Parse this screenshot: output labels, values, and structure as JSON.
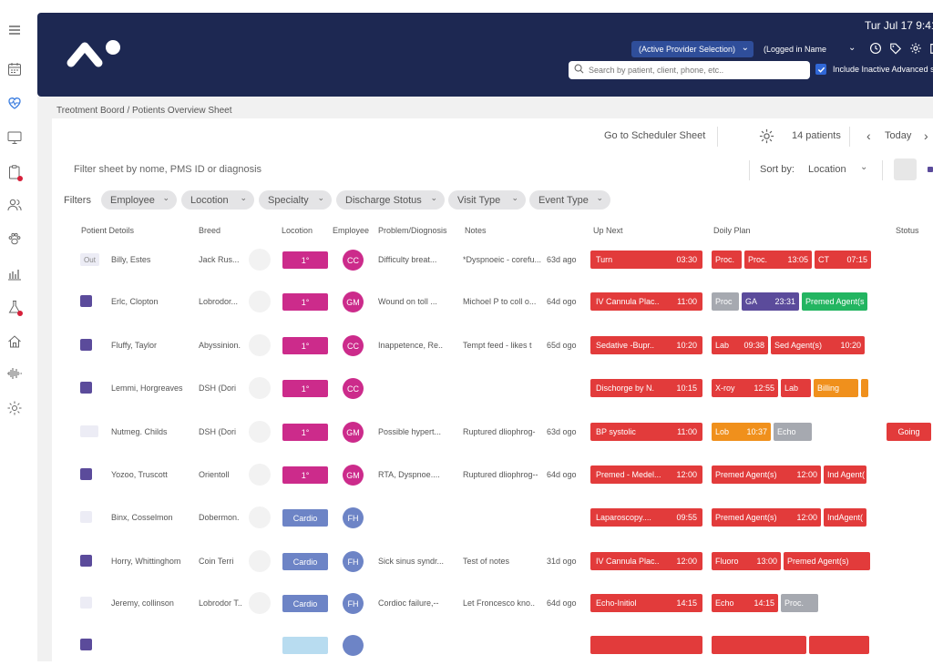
{
  "colors": {
    "navy": "#1d2852",
    "red": "#e23b3b",
    "magenta": "#cc2b8b",
    "indigo": "#5b4b9b",
    "cardio": "#6d84c6",
    "green": "#23b561",
    "orange": "#f0901c",
    "gray": "#a6a9b0",
    "lightblue": "#b8dcf0"
  },
  "header": {
    "datetime": "Tur Jul 17 9:41 (",
    "provider": "(Active Provider Selection)",
    "logged_in": "(Logged in Name",
    "search_placeholder": "Search by patient, client, phone, etc..",
    "include_inactive": "Include Inactive Advanced s"
  },
  "sidebar": {
    "icons": [
      "menu-icon",
      "calendar-icon",
      "heart-pulse-icon",
      "monitor-icon",
      "clipboard-icon",
      "users-icon",
      "paw-icon",
      "bar-chart-icon",
      "flask-icon",
      "home-icon",
      "waveform-icon",
      "settings-icon"
    ]
  },
  "breadcrumb": "Treotment Boord / Potients Overview Sheet",
  "toolbar": {
    "scheduler": "Go to Scheduler Sheet",
    "patients_count": "14 patients",
    "today": "Today"
  },
  "filter_placeholder": "Filter sheet by nome, PMS ID or diagnosis",
  "sort": {
    "label": "Sort by:",
    "value": "Location"
  },
  "filters": {
    "label": "Filters",
    "chips": [
      "Employee",
      "Locotion",
      "Specialty",
      "Discharge Stotus",
      "Visit Type",
      "Event Type"
    ]
  },
  "columns": [
    "Potient Detoils",
    "Breed",
    "Locotion",
    "Employee",
    "Problem/Diognosis",
    "Notes",
    "Up Next",
    "Doily Plan",
    "Stotus"
  ],
  "rows": [
    {
      "check": "out",
      "name": "Billy, Estes",
      "breed": "Jack Rus...",
      "loc": "1°",
      "loc_color": "magenta",
      "emp": "CC",
      "emp_color": "magenta",
      "problem": "Difficulty breat...",
      "note": "*Dyspnoeic - corefu...",
      "age": "63d ago",
      "up": {
        "label": "Turn",
        "time": "03:30"
      },
      "plan": [
        {
          "label": "Proc.",
          "time": "",
          "color": "red",
          "w": 33
        },
        {
          "label": "Proc.",
          "time": "13:05",
          "color": "red",
          "w": 74
        },
        {
          "label": "CT",
          "time": "07:15",
          "color": "red",
          "w": 62
        }
      ],
      "status": ""
    },
    {
      "check": "indigo",
      "name": "Erlc, Clopton",
      "breed": "Lobrodor...",
      "loc": "1°",
      "loc_color": "magenta",
      "emp": "GM",
      "emp_color": "magenta",
      "problem": "Wound on toll ...",
      "note": "Michoel P to coll o...",
      "age": "64d ogo",
      "up": {
        "label": "IV Cannula Plac..",
        "time": "11:00"
      },
      "plan": [
        {
          "label": "Proc",
          "time": "",
          "color": "gray",
          "w": 30
        },
        {
          "label": "GA",
          "time": "23:31",
          "color": "indigo",
          "w": 63
        },
        {
          "label": "Premed Agent(s",
          "time": "",
          "color": "green",
          "w": 72
        }
      ],
      "status": ""
    },
    {
      "check": "indigo",
      "name": "Fluffy, Taylor",
      "breed": "Abyssinion.",
      "loc": "1°",
      "loc_color": "magenta",
      "emp": "CC",
      "emp_color": "magenta",
      "problem": "Inappetence, Re..",
      "note": "Tempt feed - likes t",
      "age": "65d ogo",
      "up": {
        "label": "Sedative -Bupr..",
        "time": "10:20"
      },
      "plan": [
        {
          "label": "Lab",
          "time": "09:38",
          "color": "red",
          "w": 62
        },
        {
          "label": "Sed Agent(s)",
          "time": "10:20",
          "color": "red",
          "w": 103
        }
      ],
      "status": ""
    },
    {
      "check": "indigo",
      "name": "Lemmi, Horgreaves",
      "breed": "DSH (Dori",
      "loc": "1°",
      "loc_color": "magenta",
      "emp": "CC",
      "emp_color": "magenta",
      "problem": "",
      "note": "",
      "age": "",
      "up": {
        "label": "Dischorge by N.",
        "time": "10:15"
      },
      "plan": [
        {
          "label": "X-roy",
          "time": "12:55",
          "color": "red",
          "w": 73
        },
        {
          "label": "Lab",
          "time": "",
          "color": "red",
          "w": 33
        },
        {
          "label": "Billing",
          "time": "",
          "color": "orange",
          "w": 49
        },
        {
          "label": "",
          "time": "",
          "color": "orange",
          "w": 5
        }
      ],
      "status": ""
    },
    {
      "check": "light",
      "name": "Nutmeg. Childs",
      "breed": "DSH (Dori",
      "loc": "1°",
      "loc_color": "magenta",
      "emp": "GM",
      "emp_color": "magenta",
      "problem": "Possible hypert...",
      "note": "Ruptured dliophrog-",
      "age": "63d ogo",
      "up": {
        "label": "BP systolic",
        "time": "11:00"
      },
      "plan": [
        {
          "label": "Lob",
          "time": "10:37",
          "color": "orange",
          "w": 65
        },
        {
          "label": "Echo",
          "time": "",
          "color": "gray",
          "w": 42
        }
      ],
      "status": "Going"
    },
    {
      "check": "indigo",
      "name": "Yozoo, Truscott",
      "breed": "Orientoll",
      "loc": "1°",
      "loc_color": "magenta",
      "emp": "GM",
      "emp_color": "magenta",
      "problem": "RTA, Dyspnoe....",
      "note": "Ruptured dliophrog--",
      "age": "64d ogo",
      "up": {
        "label": "Premed - Medel...",
        "time": "12:00"
      },
      "plan": [
        {
          "label": "Premed Agent(s)",
          "time": "12:00",
          "color": "red",
          "w": 120
        },
        {
          "label": "Ind Agent(",
          "time": "",
          "color": "red",
          "w": 47
        }
      ],
      "status": ""
    },
    {
      "check": "light",
      "name": "Binx, Cosselmon",
      "breed": "Dobermon.",
      "loc": "Cardio",
      "loc_color": "cardio",
      "emp": "FH",
      "emp_color": "cardio",
      "problem": "",
      "note": "",
      "age": "",
      "up": {
        "label": "Laparoscopy....",
        "time": "09:55"
      },
      "plan": [
        {
          "label": "Premed Agent(s)",
          "time": "12:00",
          "color": "red",
          "w": 120
        },
        {
          "label": "IndAgent(",
          "time": "",
          "color": "red",
          "w": 47
        }
      ],
      "status": ""
    },
    {
      "check": "indigo",
      "name": "Horry, Whittinghom",
      "breed": "Coin Terri",
      "loc": "Cardio",
      "loc_color": "cardio",
      "emp": "FH",
      "emp_color": "cardio",
      "problem": "Sick sinus syndr...",
      "note": "Test of notes",
      "age": "31d ogo",
      "up": {
        "label": "IV Cannula Plac..",
        "time": "12:00"
      },
      "plan": [
        {
          "label": "Fluoro",
          "time": "13:00",
          "color": "red",
          "w": 76
        },
        {
          "label": "Premed Agent(s)",
          "time": "",
          "color": "red",
          "w": 95
        }
      ],
      "status": ""
    },
    {
      "check": "light",
      "name": "Jeremy, collinson",
      "breed": "Lobrodor T..",
      "loc": "Cardio",
      "loc_color": "cardio",
      "emp": "FH",
      "emp_color": "cardio",
      "problem": "Cordioc failure,--",
      "note": "Let Froncesco kno..",
      "age": "64d ogo",
      "up": {
        "label": "Echo-Initiol",
        "time": "14:15"
      },
      "plan": [
        {
          "label": "Echo",
          "time": "14:15",
          "color": "red",
          "w": 73
        },
        {
          "label": "Proc.",
          "time": "",
          "color": "gray",
          "w": 41
        }
      ],
      "status": ""
    },
    {
      "check": "indigo",
      "name": "",
      "breed": "",
      "loc": "",
      "loc_color": "lightblue",
      "emp": "",
      "emp_color": "cardio",
      "problem": "",
      "note": "",
      "age": "",
      "up": {
        "label": "",
        "time": ""
      },
      "plan": [
        {
          "label": "",
          "time": "",
          "color": "red",
          "w": 104
        },
        {
          "label": "",
          "time": "",
          "color": "red",
          "w": 66
        }
      ],
      "status": ""
    }
  ]
}
